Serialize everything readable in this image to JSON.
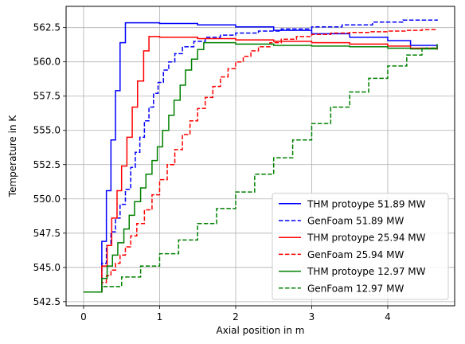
{
  "chart_data": {
    "type": "line",
    "title": "",
    "xlabel": "Axial position in m",
    "ylabel": "Temperature in K",
    "xlim": [
      -0.23,
      4.88
    ],
    "ylim": [
      542.2,
      564.05
    ],
    "xticks": [
      0,
      1,
      2,
      3,
      4
    ],
    "xtick_labels": [
      "0",
      "1",
      "2",
      "3",
      "4"
    ],
    "yticks": [
      542.5,
      545.0,
      547.5,
      550.0,
      552.5,
      555.0,
      557.5,
      560.0,
      562.5
    ],
    "ytick_labels": [
      "542.5",
      "545.0",
      "547.5",
      "550.0",
      "552.5",
      "555.0",
      "557.5",
      "560.0",
      "562.5"
    ],
    "grid": true,
    "legend_position": "lower-right",
    "series": [
      {
        "name": "THM protoype 51.89 MW",
        "color": "#0000ff",
        "style": "solid",
        "step": true,
        "x": [
          0.0,
          0.24,
          0.3,
          0.36,
          0.42,
          0.48,
          0.55,
          1.0,
          1.5,
          2.0,
          2.5,
          3.0,
          3.5,
          4.0,
          4.3,
          4.65
        ],
        "y": [
          543.2,
          546.9,
          550.6,
          554.3,
          557.9,
          561.4,
          562.85,
          562.8,
          562.7,
          562.55,
          562.3,
          562.05,
          561.8,
          561.55,
          561.2,
          560.9
        ]
      },
      {
        "name": "GenFoam 51.89 MW",
        "color": "#0000ff",
        "style": "dashed",
        "step": true,
        "x": [
          0.0,
          0.24,
          0.3,
          0.36,
          0.42,
          0.48,
          0.55,
          0.62,
          0.68,
          0.74,
          0.8,
          0.86,
          0.92,
          0.98,
          1.05,
          1.12,
          1.2,
          1.3,
          1.45,
          1.6,
          1.8,
          2.0,
          2.3,
          2.6,
          3.0,
          3.4,
          3.8,
          4.2,
          4.65
        ],
        "y": [
          543.2,
          545.3,
          546.6,
          547.6,
          548.6,
          549.6,
          550.7,
          552.3,
          553.4,
          554.5,
          555.7,
          556.7,
          557.7,
          558.5,
          559.4,
          560.0,
          560.6,
          561.1,
          561.5,
          561.8,
          561.95,
          562.1,
          562.25,
          562.4,
          562.55,
          562.7,
          562.9,
          563.05,
          563.1
        ]
      },
      {
        "name": "THM protoype 25.94 MW",
        "color": "#ff0000",
        "style": "solid",
        "step": true,
        "x": [
          0.0,
          0.24,
          0.31,
          0.37,
          0.44,
          0.5,
          0.57,
          0.64,
          0.71,
          0.79,
          0.86,
          1.0,
          1.5,
          2.0,
          2.5,
          3.0,
          3.5,
          4.0,
          4.3,
          4.65
        ],
        "y": [
          543.2,
          545.1,
          546.6,
          548.6,
          550.6,
          552.4,
          554.5,
          556.7,
          558.6,
          560.8,
          561.85,
          561.8,
          561.7,
          561.6,
          561.5,
          561.4,
          561.3,
          561.15,
          561.0,
          560.9
        ]
      },
      {
        "name": "GenFoam 25.94 MW",
        "color": "#ff0000",
        "style": "dashed",
        "step": true,
        "x": [
          0.0,
          0.24,
          0.3,
          0.36,
          0.42,
          0.48,
          0.55,
          0.62,
          0.7,
          0.8,
          0.9,
          1.0,
          1.1,
          1.2,
          1.3,
          1.4,
          1.5,
          1.6,
          1.7,
          1.8,
          1.9,
          2.0,
          2.1,
          2.2,
          2.3,
          2.45,
          2.6,
          2.8,
          3.0,
          3.25,
          3.5,
          3.75,
          4.0,
          4.25,
          4.45,
          4.65
        ],
        "y": [
          543.2,
          543.9,
          544.4,
          544.8,
          545.3,
          545.9,
          546.5,
          547.3,
          548.2,
          549.2,
          550.3,
          551.4,
          552.5,
          553.6,
          554.7,
          555.7,
          556.6,
          557.4,
          558.2,
          558.9,
          559.5,
          560.0,
          560.4,
          560.8,
          561.1,
          561.4,
          561.65,
          561.85,
          562.0,
          562.1,
          562.15,
          562.2,
          562.25,
          562.3,
          562.35,
          562.35
        ]
      },
      {
        "name": "THM protoype 12.97 MW",
        "color": "#008000",
        "style": "solid",
        "step": true,
        "x": [
          0.0,
          0.24,
          0.31,
          0.38,
          0.45,
          0.53,
          0.6,
          0.67,
          0.75,
          0.82,
          0.9,
          0.97,
          1.04,
          1.12,
          1.19,
          1.27,
          1.34,
          1.42,
          1.5,
          1.58,
          2.0,
          2.5,
          3.0,
          3.5,
          4.0,
          4.3,
          4.65
        ],
        "y": [
          543.2,
          544.2,
          545.1,
          545.9,
          546.8,
          547.8,
          548.8,
          549.8,
          550.8,
          551.8,
          552.8,
          553.8,
          555.0,
          556.1,
          557.2,
          558.3,
          559.4,
          560.2,
          560.9,
          561.4,
          561.3,
          561.2,
          561.15,
          561.1,
          561.0,
          560.95,
          560.9
        ]
      },
      {
        "name": "GenFoam 12.97 MW",
        "color": "#008000",
        "style": "dashed",
        "step": true,
        "x": [
          0.0,
          0.24,
          0.5,
          0.75,
          1.0,
          1.25,
          1.5,
          1.75,
          2.0,
          2.25,
          2.5,
          2.75,
          3.0,
          3.25,
          3.5,
          3.75,
          4.0,
          4.25,
          4.45,
          4.65
        ],
        "y": [
          543.2,
          543.6,
          544.3,
          545.1,
          546.0,
          547.0,
          548.2,
          549.3,
          550.5,
          551.8,
          553.0,
          554.3,
          555.5,
          556.7,
          557.8,
          558.8,
          559.7,
          560.5,
          561.0,
          561.3
        ]
      }
    ]
  }
}
